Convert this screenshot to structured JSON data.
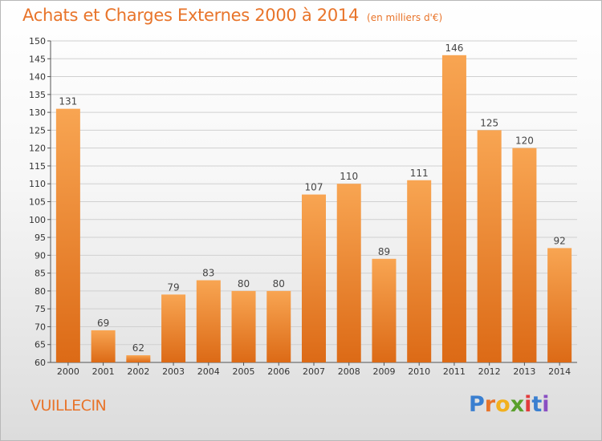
{
  "title": "Achats et Charges Externes 2000 à 2014",
  "subtitle": "(en milliers d'€)",
  "commune": "VUILLECIN",
  "logo": {
    "text": "Proxiti"
  },
  "colors": {
    "accent": "#e8742a",
    "bar_top": "#f8a552",
    "bar_bottom": "#dc6a16",
    "grid": "#d0d0d0"
  },
  "chart_data": {
    "type": "bar",
    "title": "Achats et Charges Externes 2000 à 2014",
    "subtitle": "(en milliers d'€)",
    "xlabel": "",
    "ylabel": "",
    "categories": [
      "2000",
      "2001",
      "2002",
      "2003",
      "2004",
      "2005",
      "2006",
      "2007",
      "2008",
      "2009",
      "2010",
      "2011",
      "2012",
      "2013",
      "2014"
    ],
    "values": [
      131,
      69,
      62,
      79,
      83,
      80,
      80,
      107,
      110,
      89,
      111,
      146,
      125,
      120,
      92
    ],
    "ylim": [
      60,
      150
    ],
    "yticks": [
      60,
      65,
      70,
      75,
      80,
      85,
      90,
      95,
      100,
      105,
      110,
      115,
      120,
      125,
      130,
      135,
      140,
      145,
      150
    ],
    "grid": true,
    "legend": "none"
  }
}
